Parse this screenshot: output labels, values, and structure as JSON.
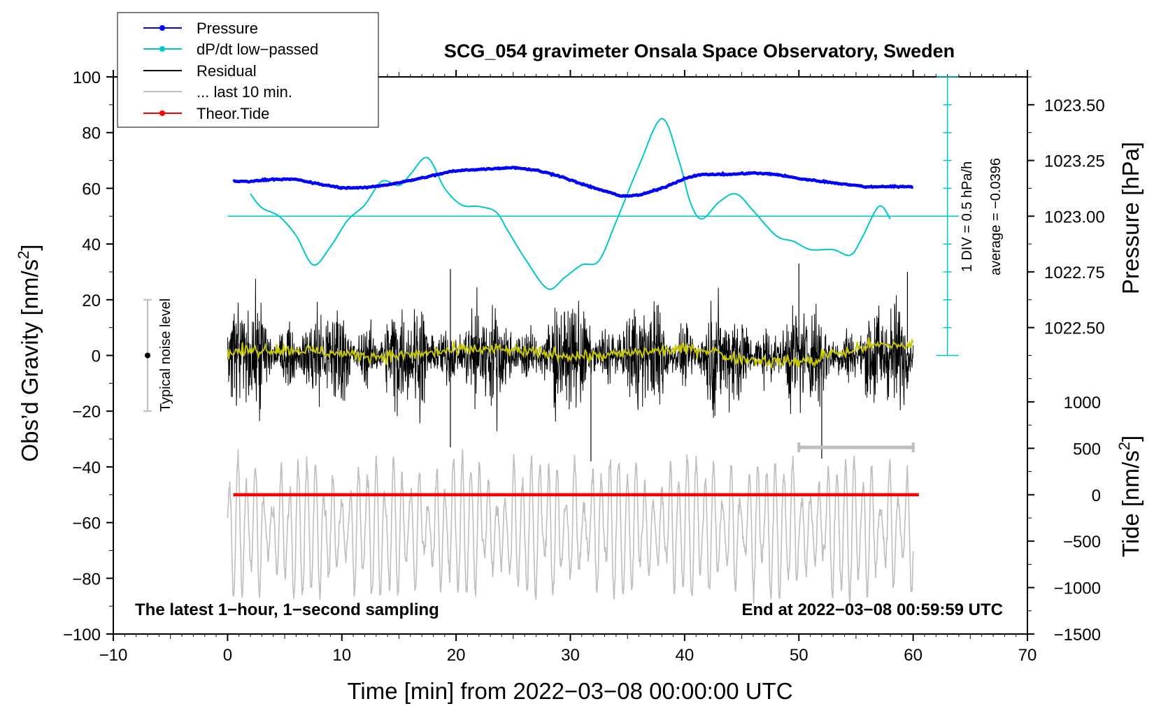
{
  "chart_data": {
    "type": "line",
    "title": "SCG_054 gravimeter Onsala Space Observatory, Sweden",
    "xlabel": "Time [min] from 2022−03−08 00:00:00 UTC",
    "ylabel_main": "Obs’d Gravity [nm/s",
    "ylabel_sup": "2",
    "ylabel_close": "]",
    "y2label_pressure": "Pressure [hPa]",
    "y2label_tide_main": "Tide [nm/s",
    "y2label_tide_sup": "2",
    "y2label_tide_close": "]",
    "xlim": [
      -10,
      70
    ],
    "ylim": [
      -100,
      100
    ],
    "x_ticks": [
      -10,
      0,
      10,
      20,
      30,
      40,
      50,
      60,
      70
    ],
    "x_tick_labels": [
      "−10",
      "0",
      "10",
      "20",
      "30",
      "40",
      "50",
      "60",
      "70"
    ],
    "y_ticks": [
      -100,
      -80,
      -60,
      -40,
      -20,
      0,
      20,
      40,
      60,
      80,
      100
    ],
    "y_tick_labels": [
      "−100",
      "−80",
      "−60",
      "−40",
      "−20",
      "0",
      "20",
      "40",
      "60",
      "80",
      "100"
    ],
    "pressure_ticks": [
      1022.5,
      1022.75,
      1023.0,
      1023.25,
      1023.5
    ],
    "pressure_tick_labels": [
      "1022.50",
      "1022.75",
      "1023.00",
      "1023.25",
      "1023.50"
    ],
    "pressure_mapping": {
      "pressure_at_gravity_50": 1023.0,
      "hpa_per_gravity_unit": 0.0125
    },
    "tide_ticks": [
      -1500,
      -1000,
      -500,
      0,
      500,
      1000
    ],
    "tide_tick_labels": [
      "−1500",
      "−1000",
      "−500",
      "0",
      "500",
      "1000"
    ],
    "tide_mapping": {
      "tide_zero_at_gravity": -50,
      "nms2_per_gravity_unit": 30
    },
    "legend_position": "top-left",
    "legend": [
      {
        "label": "Pressure",
        "color": "#0000ff",
        "marker": true
      },
      {
        "label": "dP/dt low−passed",
        "color": "#00c8c8",
        "marker": true
      },
      {
        "label": "Residual",
        "color": "#000000",
        "marker": false
      },
      {
        "label": "... last 10 min.",
        "color": "#bebebe",
        "marker": false
      },
      {
        "label": "Theor.Tide",
        "color": "#ff0000",
        "marker": true
      }
    ],
    "series": [
      {
        "name": "Pressure",
        "axis": "pressure",
        "color": "#0000ff",
        "x": [
          0.5,
          2,
          4,
          6,
          8,
          10,
          12,
          14,
          16,
          18,
          19.5,
          21,
          23,
          25,
          27,
          29,
          31,
          33,
          34.5,
          36,
          38,
          40,
          41,
          42,
          44,
          46,
          48,
          50,
          52,
          54,
          56,
          58,
          60
        ],
        "y": [
          62.5,
          62.5,
          63.3,
          63.2,
          61.5,
          60.2,
          60.2,
          61.3,
          62.8,
          64.6,
          66.0,
          66.6,
          67.0,
          67.5,
          66.5,
          64.5,
          61.5,
          59.0,
          57.2,
          57.5,
          60.0,
          63.5,
          64.7,
          65.0,
          65.0,
          65.5,
          65.0,
          63.5,
          62.5,
          61.5,
          60.5,
          60.7,
          60.5
        ]
      },
      {
        "name": "dP/dt low−passed",
        "axis": "gravity",
        "color": "#00c8c8",
        "x": [
          2,
          3,
          4.5,
          6,
          7.5,
          9,
          10.5,
          12,
          13.5,
          15,
          16,
          17.5,
          19,
          20.5,
          22,
          23.5,
          24.5,
          26,
          28,
          29.5,
          31,
          32.5,
          34,
          36,
          38,
          39.5,
          40.5,
          41.5,
          43,
          44.5,
          46,
          48,
          49.5,
          51,
          53,
          54.5,
          55.5,
          57,
          58
        ],
        "y": [
          58,
          53,
          50,
          43,
          32.5,
          39,
          48.5,
          54,
          62.5,
          61,
          65,
          71,
          60,
          54,
          53.5,
          51.5,
          45,
          35,
          24,
          28,
          32.5,
          34,
          48,
          68,
          85,
          70,
          55,
          49,
          55,
          58,
          52,
          43,
          41,
          38,
          38,
          36,
          42,
          53.5,
          49
        ]
      },
      {
        "name": "Residual",
        "axis": "gravity",
        "color": "#000000",
        "x_range": [
          0,
          60
        ],
        "approx_amplitude": 12,
        "extremes": [
          {
            "x": 19.5,
            "y": 31
          },
          {
            "x": 19.5,
            "y": -33
          },
          {
            "x": 31.8,
            "y": -38
          },
          {
            "x": 50,
            "y": 33
          },
          {
            "x": 52,
            "y": -37
          },
          {
            "x": 59.5,
            "y": 30
          }
        ]
      },
      {
        "name": "Residual smoothed",
        "axis": "gravity",
        "color": "#c8c800",
        "x_range": [
          0,
          60
        ],
        "approx_level": 1
      },
      {
        "name": "... last 10 min.",
        "axis": "gravity",
        "color": "#bebebe",
        "x_range": [
          0,
          60
        ],
        "center": -62,
        "approx_amplitude": 25
      },
      {
        "name": "Theor.Tide",
        "axis": "tide",
        "color": "#ff0000",
        "x": [
          0.5,
          60.5
        ],
        "y": [
          0,
          0
        ]
      }
    ],
    "noise_level": {
      "label": "Typical noise level",
      "x": -7,
      "center": 0,
      "range": [
        -20,
        20
      ]
    },
    "last10_marker": {
      "x": [
        50,
        60
      ],
      "y": -33
    },
    "dpdt_scale": {
      "label_div": "1 DIV = 0.5 hPa/h",
      "label_avg": "average = −0.0396",
      "x": 63,
      "y_range": [
        0,
        100
      ],
      "baseline": 50,
      "baseline_x": [
        0,
        64
      ]
    },
    "annotation_left": "The latest 1−hour, 1−second sampling",
    "annotation_right": "End at 2022−03−08 00:59:59 UTC"
  }
}
